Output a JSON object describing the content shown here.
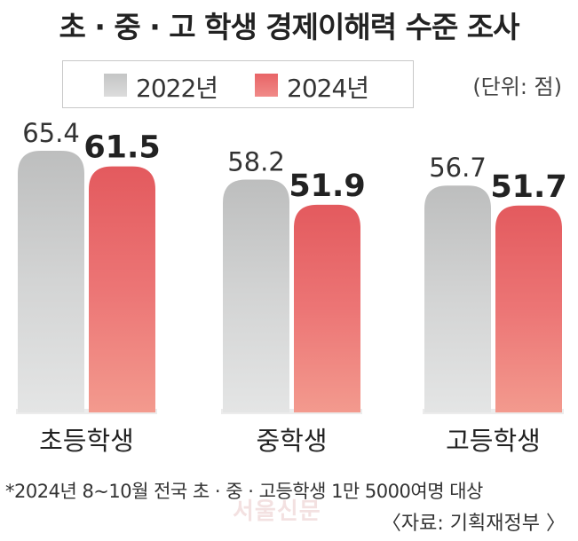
{
  "title": "초 · 중 · 고 학생 경제이해력 수준 조사",
  "unit": "(단위: 점)",
  "footnote": "*2024년 8~10월 전국 초 · 중 · 고등학생 1만 5000여명 대상",
  "source": "〈자료: 기획재정부 〉",
  "watermark": "서울신문",
  "colors": {
    "series_2022": "#d3d4d4",
    "series_2024": "#eb6e70"
  },
  "chart_data": {
    "type": "bar",
    "categories": [
      "초등학생",
      "중학생",
      "고등학생"
    ],
    "series": [
      {
        "name": "2022년",
        "values": [
          65.4,
          58.2,
          56.7
        ]
      },
      {
        "name": "2024년",
        "values": [
          61.5,
          51.9,
          51.7
        ]
      }
    ],
    "title": "초 · 중 · 고 학생 경제이해력 수준 조사",
    "ylabel": "",
    "xlabel": "",
    "ylim": [
      0,
      70
    ],
    "grid": false,
    "legend": "top-left"
  }
}
